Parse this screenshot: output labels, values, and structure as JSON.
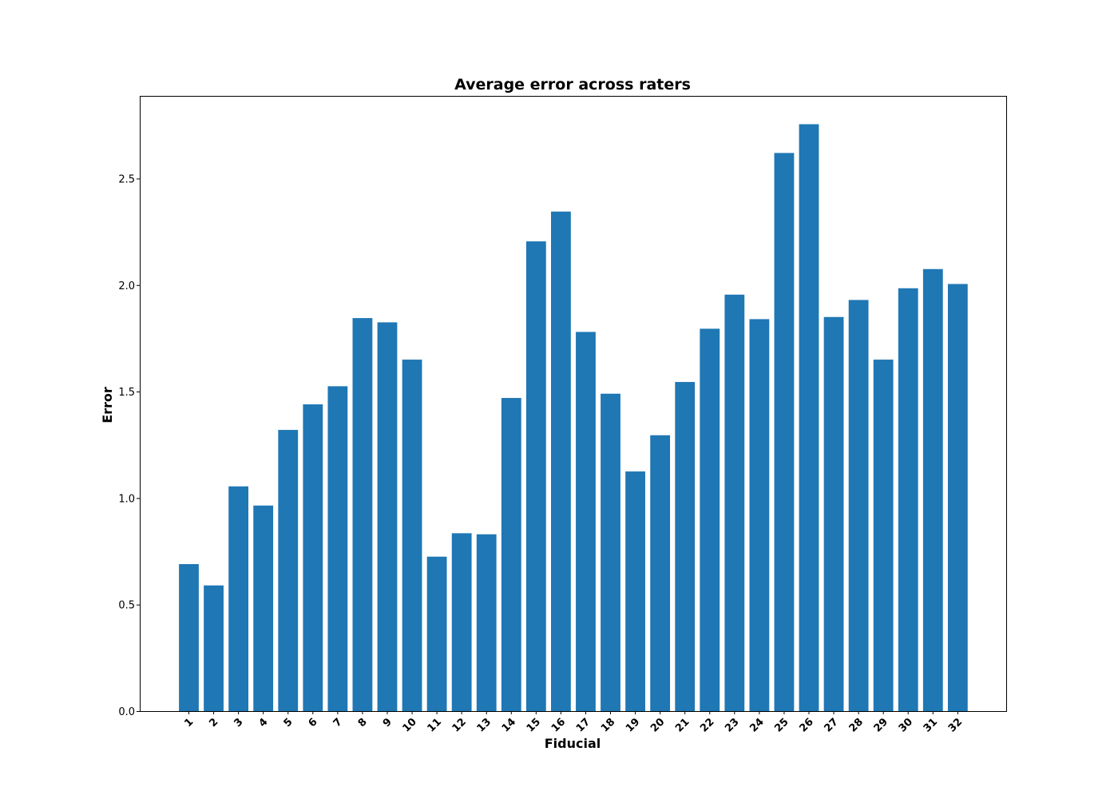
{
  "chart_data": {
    "type": "bar",
    "title": "Average error across raters",
    "xlabel": "Fiducial",
    "ylabel": "Error",
    "categories": [
      "1",
      "2",
      "3",
      "4",
      "5",
      "6",
      "7",
      "8",
      "9",
      "10",
      "11",
      "12",
      "13",
      "14",
      "15",
      "16",
      "17",
      "18",
      "19",
      "20",
      "21",
      "22",
      "23",
      "24",
      "25",
      "26",
      "27",
      "28",
      "29",
      "30",
      "31",
      "32"
    ],
    "values": [
      0.69,
      0.59,
      1.055,
      0.965,
      1.32,
      1.44,
      1.525,
      1.845,
      1.825,
      1.65,
      0.725,
      0.835,
      0.83,
      1.47,
      2.205,
      2.345,
      1.78,
      1.49,
      1.125,
      1.295,
      1.545,
      1.795,
      1.955,
      1.84,
      2.62,
      2.755,
      1.85,
      1.93,
      1.65,
      1.985,
      2.075,
      2.005
    ],
    "ylim": [
      0,
      2.888
    ],
    "yticks": [
      "0.0",
      "0.5",
      "1.0",
      "1.5",
      "2.0",
      "2.5"
    ],
    "bar_color": "#1f77b4",
    "grid": false,
    "legend": "none"
  }
}
